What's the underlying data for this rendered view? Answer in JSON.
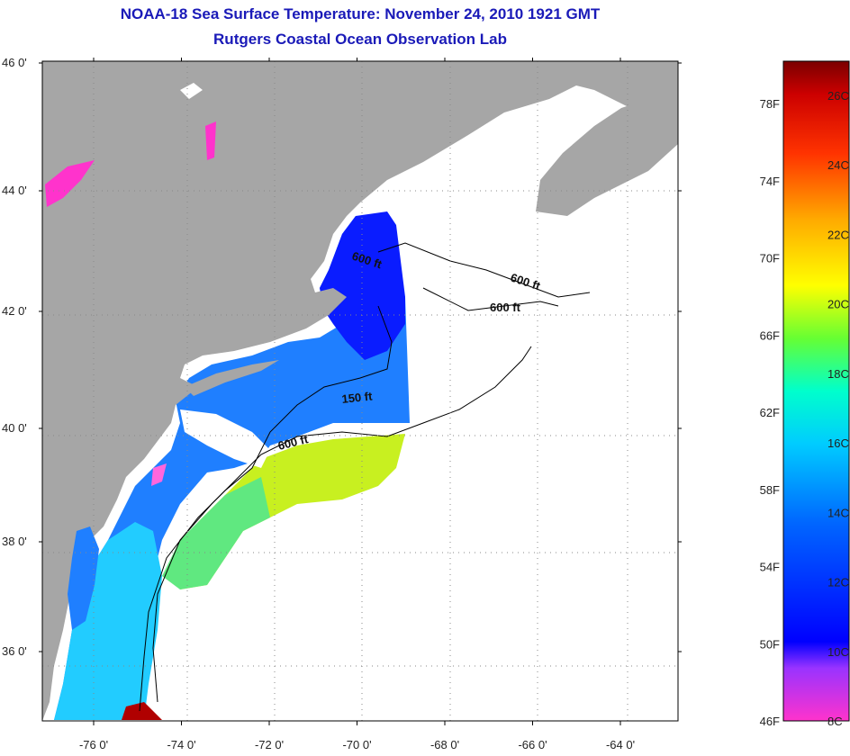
{
  "title": {
    "line1": "NOAA-18 Sea Surface Temperature:  November 24, 2010 1921 GMT",
    "line2": "Rutgers Coastal Ocean Observation Lab"
  },
  "map": {
    "lat_labels": [
      {
        "value": 46,
        "text": "46 0'"
      },
      {
        "value": 44,
        "text": "44 0'"
      },
      {
        "value": 42,
        "text": "42 0'"
      },
      {
        "value": 40,
        "text": "40 0'"
      },
      {
        "value": 38,
        "text": "38 0'"
      },
      {
        "value": 36,
        "text": "36 0'"
      }
    ],
    "lon_labels": [
      {
        "value": -76,
        "text": "-76 0'"
      },
      {
        "value": -74,
        "text": "-74 0'"
      },
      {
        "value": -72,
        "text": "-72 0'"
      },
      {
        "value": -70,
        "text": "-70 0'"
      },
      {
        "value": -68,
        "text": "-68 0'"
      },
      {
        "value": -66,
        "text": "-66 0'"
      },
      {
        "value": -64,
        "text": "-64 0'"
      }
    ],
    "contour_labels": [
      "600 ft",
      "600 ft",
      "600 ft",
      "150 ft",
      "600 ft"
    ]
  },
  "colorbar": {
    "fahrenheit_labels": [
      "78F",
      "74F",
      "70F",
      "66F",
      "62F",
      "58F",
      "54F",
      "50F",
      "46F"
    ],
    "celsius_labels": [
      "26C",
      "24C",
      "22C",
      "20C",
      "18C",
      "16C",
      "14C",
      "12C",
      "10C",
      "8C"
    ]
  }
}
